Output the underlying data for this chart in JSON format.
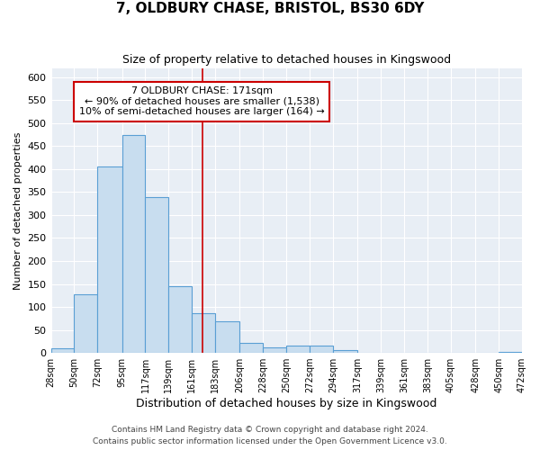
{
  "title": "7, OLDBURY CHASE, BRISTOL, BS30 6DY",
  "subtitle": "Size of property relative to detached houses in Kingswood",
  "xlabel": "Distribution of detached houses by size in Kingswood",
  "ylabel": "Number of detached properties",
  "bar_color": "#c8ddef",
  "bar_edge_color": "#5a9fd4",
  "bin_edges": [
    28,
    50,
    72,
    95,
    117,
    139,
    161,
    183,
    206,
    228,
    250,
    272,
    294,
    317,
    339,
    361,
    383,
    405,
    428,
    450,
    472
  ],
  "bar_heights": [
    10,
    127,
    405,
    475,
    340,
    146,
    86,
    68,
    22,
    12,
    16,
    16,
    6,
    1,
    0,
    0,
    0,
    0,
    0,
    3
  ],
  "tick_labels": [
    "28sqm",
    "50sqm",
    "72sqm",
    "95sqm",
    "117sqm",
    "139sqm",
    "161sqm",
    "183sqm",
    "206sqm",
    "228sqm",
    "250sqm",
    "272sqm",
    "294sqm",
    "317sqm",
    "339sqm",
    "361sqm",
    "383sqm",
    "405sqm",
    "428sqm",
    "450sqm",
    "472sqm"
  ],
  "property_size": 171,
  "vline_color": "#cc0000",
  "annotation_box_edge": "#cc0000",
  "annotation_title": "7 OLDBURY CHASE: 171sqm",
  "annotation_line1": "← 90% of detached houses are smaller (1,538)",
  "annotation_line2": "10% of semi-detached houses are larger (164) →",
  "ylim": [
    0,
    620
  ],
  "xlim_left": 28,
  "xlim_right": 472,
  "yticks": [
    0,
    50,
    100,
    150,
    200,
    250,
    300,
    350,
    400,
    450,
    500,
    550,
    600
  ],
  "footnote1": "Contains HM Land Registry data © Crown copyright and database right 2024.",
  "footnote2": "Contains public sector information licensed under the Open Government Licence v3.0.",
  "background_color": "#ffffff",
  "plot_background": "#e8eef5",
  "grid_color": "#ffffff",
  "title_fontsize": 11,
  "subtitle_fontsize": 9,
  "ylabel_fontsize": 8,
  "xlabel_fontsize": 9,
  "tick_fontsize": 7,
  "ytick_fontsize": 8,
  "footnote_fontsize": 6.5
}
